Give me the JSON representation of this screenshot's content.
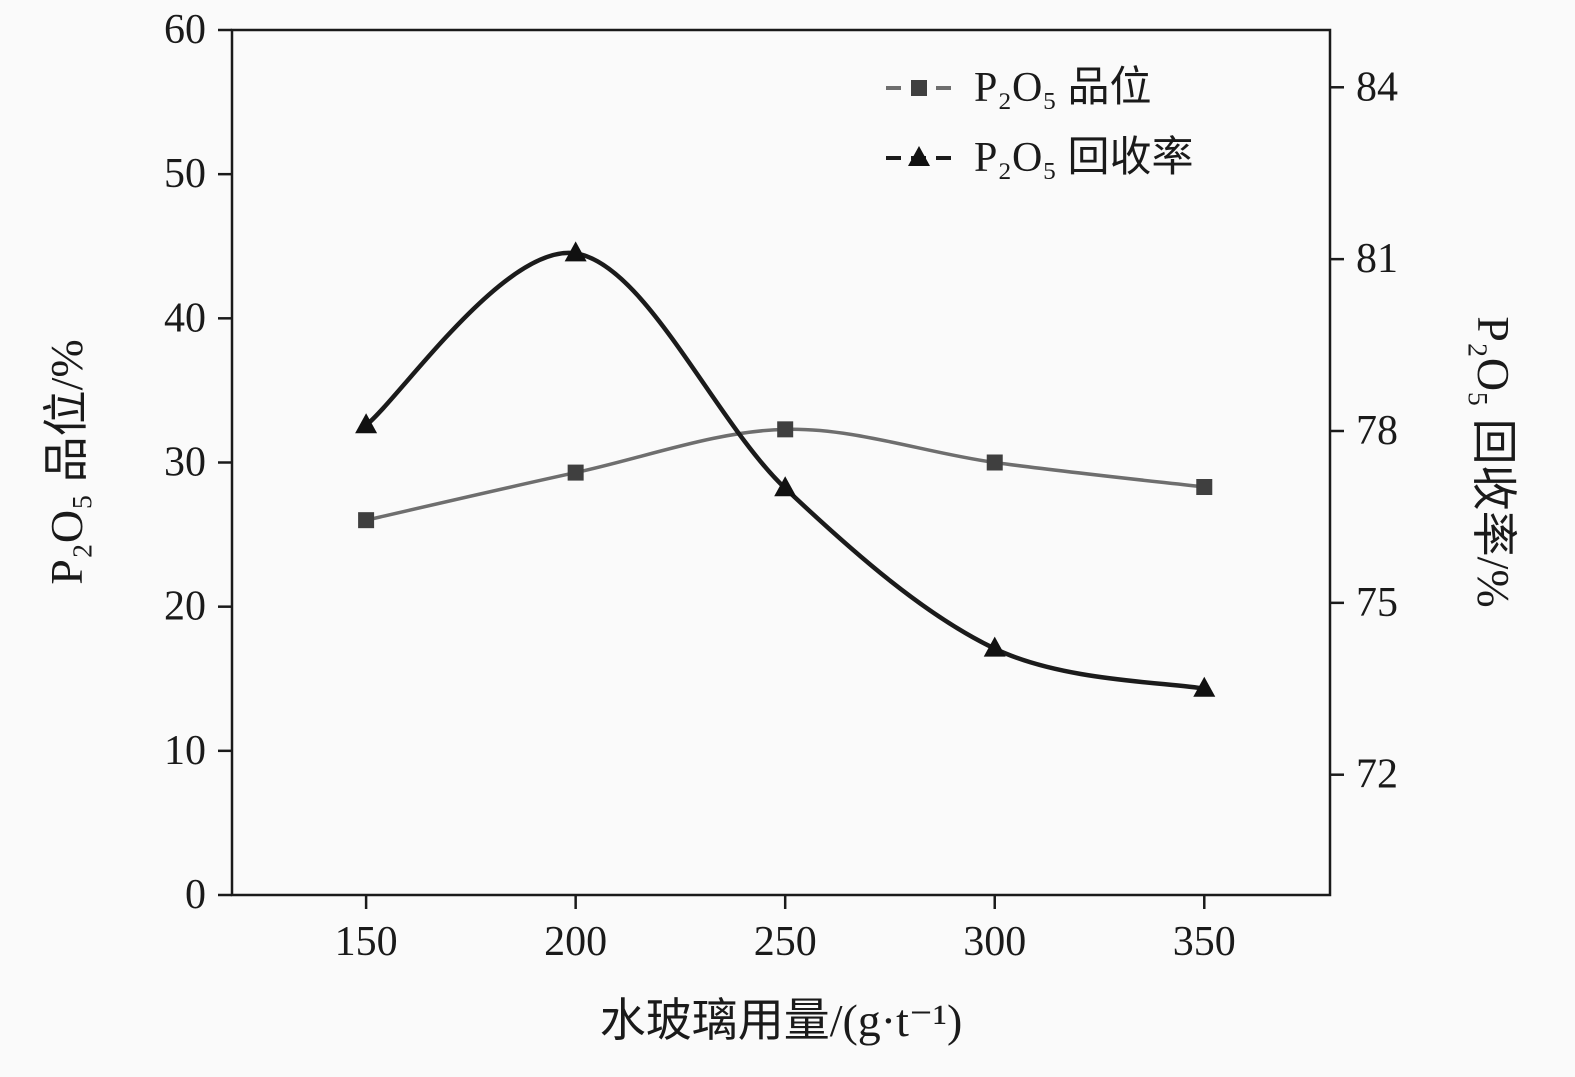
{
  "page": {
    "background_color": "#fafafa",
    "axis_color": "#1a1a1a"
  },
  "chart_data": {
    "type": "line",
    "title": "",
    "x": [
      150,
      200,
      250,
      300,
      350
    ],
    "xticks": [
      150,
      200,
      250,
      300,
      350
    ],
    "xlim": [
      118,
      380
    ],
    "xlabel": "水玻璃用量/(g·t⁻¹)",
    "ylabel_left": "P₂O₅ 品位/%",
    "ylabel_right": "P₂O₅ 回收率/%",
    "ylim_left": [
      0,
      60
    ],
    "yticks_left": [
      0,
      10,
      20,
      30,
      40,
      50,
      60
    ],
    "ylim_right": [
      69.9,
      85.0
    ],
    "yticks_right": [
      72,
      75,
      78,
      81,
      84
    ],
    "grid": false,
    "legend_position": "top-right-inside",
    "series": [
      {
        "name": "P₂O₅ 品位",
        "axis": "left",
        "marker": "square",
        "line_color": "#6e6e6e",
        "marker_color": "#3f3f3f",
        "line_width": 3.5,
        "values": [
          26.0,
          29.3,
          32.3,
          30.0,
          28.3
        ]
      },
      {
        "name": "P₂O₅ 回收率",
        "axis": "right",
        "marker": "triangle",
        "line_color": "#1b1b1b",
        "marker_color": "#111111",
        "line_width": 4.5,
        "values": [
          78.1,
          81.1,
          77.0,
          74.2,
          73.5
        ]
      }
    ]
  }
}
